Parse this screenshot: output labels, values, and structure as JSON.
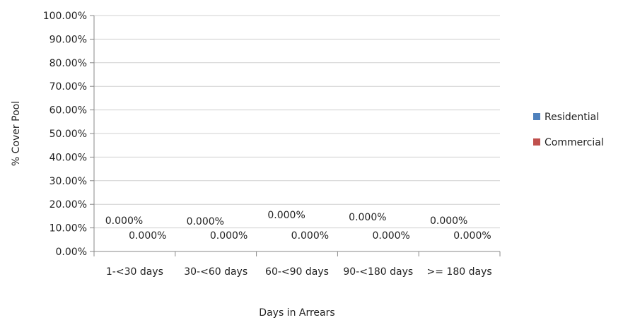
{
  "chart_data": {
    "type": "bar",
    "categories": [
      "1-<30 days",
      "30-<60 days",
      "60-<90 days",
      "90-<180 days",
      ">= 180 days"
    ],
    "series": [
      {
        "name": "Residential",
        "values": [
          0,
          0,
          0,
          0,
          0
        ],
        "labels": [
          "0.000%",
          "0.000%",
          "0.000%",
          "0.000%",
          "0.000%"
        ],
        "color": "#4f81bd"
      },
      {
        "name": "Commercial",
        "values": [
          0,
          0,
          0,
          0,
          0
        ],
        "labels": [
          "0.000%",
          "0.000%",
          "0.000%",
          "0.000%",
          "0.000%"
        ],
        "color": "#c0504d"
      }
    ],
    "xlabel": "Days in Arrears",
    "ylabel": "% Cover Pool",
    "ylim": [
      0,
      100
    ],
    "yticks": [
      "0.00%",
      "10.00%",
      "20.00%",
      "30.00%",
      "40.00%",
      "50.00%",
      "60.00%",
      "70.00%",
      "80.00%",
      "90.00%",
      "100.00%"
    ],
    "grid": true,
    "legend": "right"
  }
}
